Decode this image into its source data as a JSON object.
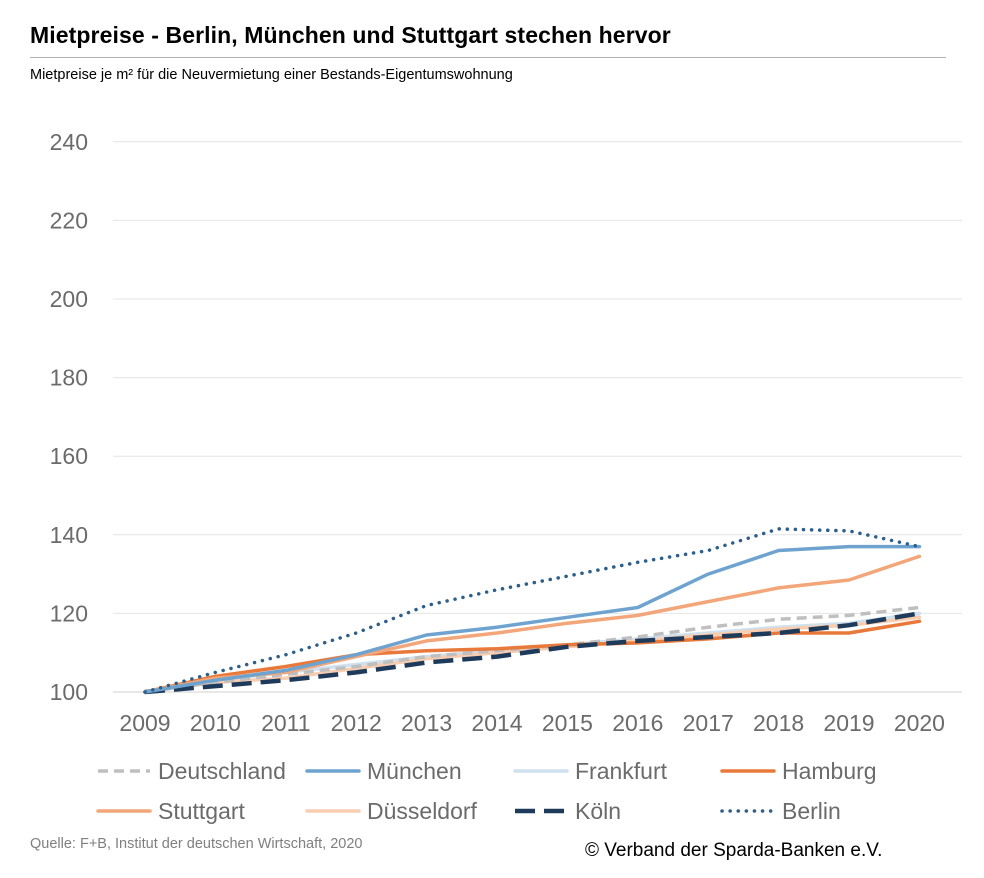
{
  "header": {
    "title": "Mietpreise - Berlin, München und Stuttgart stechen hervor",
    "subtitle": "Mietpreise je m² für die Neuvermietung einer Bestands-Eigentumswohnung"
  },
  "footer": {
    "source": "Quelle: F+B, Institut der deutschen Wirtschaft, 2020",
    "copyright": "© Verband der Sparda-Banken e.V."
  },
  "chart_data": {
    "type": "line",
    "title": "Mietpreise - Berlin, München und Stuttgart stechen hervor",
    "subtitle": "Mietpreise je m² für die Neuvermietung einer Bestands-Eigentumswohnung",
    "xlabel": "",
    "ylabel": "",
    "ylim": [
      100,
      240
    ],
    "yticks": [
      100,
      120,
      140,
      160,
      180,
      200,
      220,
      240
    ],
    "grid": true,
    "legend_position": "bottom",
    "categories": [
      "2009",
      "2010",
      "2011",
      "2012",
      "2013",
      "2014",
      "2015",
      "2016",
      "2017",
      "2018",
      "2019",
      "2020"
    ],
    "series": [
      {
        "name": "Deutschland",
        "color": "#bfbfbf",
        "style": "dashed",
        "values": [
          100,
          102.5,
          104.5,
          106.5,
          109,
          110.5,
          112,
          114,
          116.5,
          118.5,
          119.5,
          121.5
        ]
      },
      {
        "name": "München",
        "color": "#6fa3cf",
        "style": "solid",
        "values": [
          100,
          103,
          105.5,
          109.5,
          114.5,
          116.5,
          119,
          121.5,
          130,
          136,
          137,
          137
        ]
      },
      {
        "name": "Frankfurt",
        "color": "#cfe0ef",
        "style": "solid",
        "values": [
          100,
          103,
          105,
          107,
          109,
          110.5,
          112,
          113.5,
          115,
          116.5,
          117.5,
          120
        ]
      },
      {
        "name": "Hamburg",
        "color": "#e8793a",
        "style": "solid",
        "values": [
          100,
          104,
          106.5,
          109.5,
          110.5,
          111,
          112,
          112.5,
          113.5,
          115,
          115,
          118
        ]
      },
      {
        "name": "Stuttgart",
        "color": "#f2a679",
        "style": "solid",
        "values": [
          100,
          103.5,
          105,
          109,
          113,
          115,
          117.5,
          119.5,
          123,
          126.5,
          128.5,
          134.5
        ]
      },
      {
        "name": "Düsseldorf",
        "color": "#f8cdb0",
        "style": "solid",
        "values": [
          100,
          102.5,
          103.5,
          106,
          108.5,
          110,
          111.5,
          113,
          114.5,
          116,
          117,
          119
        ]
      },
      {
        "name": "Köln",
        "color": "#1f3b5c",
        "style": "longdash",
        "values": [
          100,
          101.5,
          103,
          105,
          107.5,
          109,
          111.5,
          113,
          114,
          115,
          117,
          120
        ]
      },
      {
        "name": "Berlin",
        "color": "#2e5f8a",
        "style": "dotted",
        "values": [
          100,
          105,
          109.5,
          115,
          122,
          126,
          129.5,
          133,
          136,
          141.5,
          141,
          137
        ]
      }
    ]
  }
}
